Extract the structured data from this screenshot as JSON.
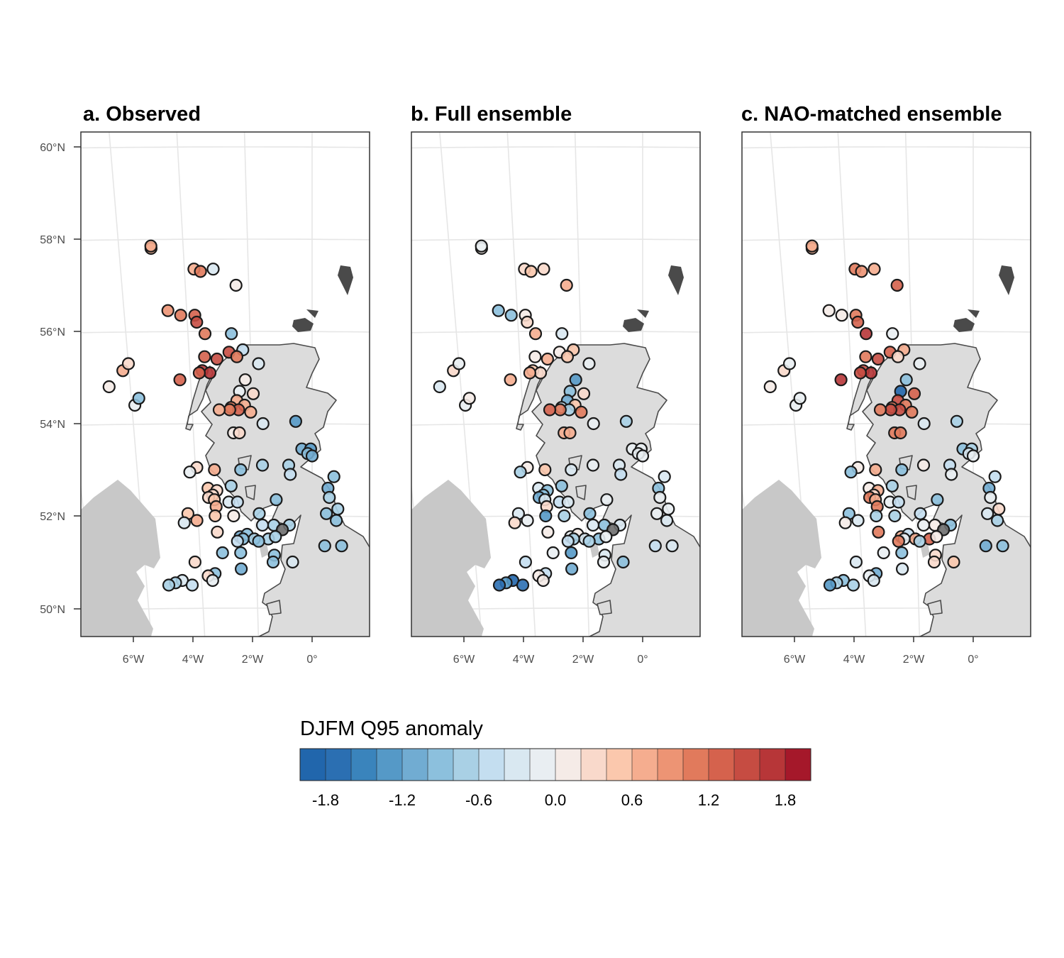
{
  "panels": [
    {
      "id": "a",
      "title": "a. Observed"
    },
    {
      "id": "b",
      "title": "b. Full ensemble"
    },
    {
      "id": "c",
      "title": "c. NAO-matched ensemble"
    }
  ],
  "axes": {
    "lat_ticks": [
      "60°N",
      "58°N",
      "56°N",
      "54°N",
      "52°N",
      "50°N"
    ],
    "lon_ticks": [
      "6°W",
      "4°W",
      "2°W",
      "0°"
    ]
  },
  "legend": {
    "title": "DJFM Q95 anomaly",
    "tick_labels": [
      "-1.8",
      "-1.2",
      "-0.6",
      "0.0",
      "0.6",
      "1.2",
      "1.8"
    ],
    "tick_values": [
      -1.8,
      -1.2,
      -0.6,
      0.0,
      0.6,
      1.2,
      1.8
    ],
    "range": [
      -2.0,
      2.0
    ],
    "step": 0.2,
    "colors": [
      "#2166ac",
      "#2b6fb2",
      "#3a84bc",
      "#5599c7",
      "#71acd2",
      "#8cc0dd",
      "#a9d0e5",
      "#c4def0",
      "#d9e8f1",
      "#e9eef2",
      "#f5ebe7",
      "#f9d9cb",
      "#fbc8ad",
      "#f5ad8f",
      "#ed9474",
      "#e17a5c",
      "#d5624d",
      "#c64c42",
      "#b73638",
      "#a5182a"
    ],
    "missing_color": "#6e6e6e"
  },
  "stations": [
    {
      "lon": -5.0,
      "lat": 57.8,
      "anom": [
        0.8,
        0.0,
        0.8
      ]
    },
    {
      "lon": -3.7,
      "lat": 57.35,
      "anom": [
        0.8,
        0.3,
        1.0
      ]
    },
    {
      "lon": -3.5,
      "lat": 57.3,
      "anom": [
        1.0,
        0.5,
        0.9
      ]
    },
    {
      "lon": -3.1,
      "lat": 57.35,
      "anom": [
        -0.4,
        0.3,
        0.6
      ]
    },
    {
      "lon": -2.4,
      "lat": 57.0,
      "anom": [
        0.0,
        0.8,
        1.2
      ]
    },
    {
      "lon": -4.2,
      "lat": 56.35,
      "anom": [
        1.0,
        -0.8,
        0.0
      ]
    },
    {
      "lon": -3.75,
      "lat": 56.35,
      "anom": [
        1.3,
        0.1,
        1.1
      ]
    },
    {
      "lon": -3.7,
      "lat": 56.2,
      "anom": [
        1.5,
        0.3,
        1.3
      ]
    },
    {
      "lon": -3.45,
      "lat": 55.95,
      "anom": [
        1.1,
        0.7,
        1.8
      ]
    },
    {
      "lon": -2.6,
      "lat": 55.95,
      "anom": [
        -0.8,
        -0.3,
        -0.2
      ]
    },
    {
      "lon": -2.25,
      "lat": 55.6,
      "anom": [
        -0.5,
        0.5,
        0.6
      ]
    },
    {
      "lon": -2.7,
      "lat": 55.55,
      "anom": [
        1.4,
        0.0,
        1.3
      ]
    },
    {
      "lon": -2.45,
      "lat": 55.45,
      "anom": [
        1.1,
        0.5,
        0.4
      ]
    },
    {
      "lon": -3.5,
      "lat": 55.45,
      "anom": [
        1.3,
        0.0,
        1.0
      ]
    },
    {
      "lon": -3.1,
      "lat": 55.4,
      "anom": [
        1.5,
        0.7,
        1.5
      ]
    },
    {
      "lon": -3.6,
      "lat": 55.15,
      "anom": [
        1.6,
        0.5,
        1.5
      ]
    },
    {
      "lon": -3.35,
      "lat": 55.1,
      "anom": [
        1.7,
        0.3,
        1.6
      ]
    },
    {
      "lon": -3.7,
      "lat": 55.1,
      "anom": [
        1.2,
        0.7,
        1.4
      ]
    },
    {
      "lon": -1.75,
      "lat": 55.3,
      "anom": [
        -0.4,
        -0.1,
        -0.1
      ]
    },
    {
      "lon": -4.35,
      "lat": 54.95,
      "anom": [
        1.2,
        0.8,
        1.7
      ]
    },
    {
      "lon": -2.2,
      "lat": 54.95,
      "anom": [
        0.1,
        -1.4,
        -0.9
      ]
    },
    {
      "lon": -2.4,
      "lat": 54.7,
      "anom": [
        -0.2,
        -1.0,
        -2.0
      ]
    },
    {
      "lon": -1.95,
      "lat": 54.65,
      "anom": [
        0.4,
        0.3,
        1.2
      ]
    },
    {
      "lon": -2.5,
      "lat": 54.5,
      "anom": [
        0.8,
        -1.1,
        1.4
      ]
    },
    {
      "lon": -2.25,
      "lat": 54.4,
      "anom": [
        0.6,
        0.5,
        1.0
      ]
    },
    {
      "lon": -2.7,
      "lat": 54.35,
      "anom": [
        1.0,
        -0.5,
        1.1
      ]
    },
    {
      "lon": -2.45,
      "lat": 54.3,
      "anom": [
        1.2,
        -0.7,
        1.4
      ]
    },
    {
      "lon": -2.75,
      "lat": 54.3,
      "anom": [
        1.1,
        1.0,
        1.5
      ]
    },
    {
      "lon": -3.1,
      "lat": 54.3,
      "anom": [
        0.7,
        1.3,
        1.0
      ]
    },
    {
      "lon": -2.05,
      "lat": 54.25,
      "anom": [
        0.8,
        1.0,
        1.0
      ]
    },
    {
      "lon": -1.65,
      "lat": 54.0,
      "anom": [
        -0.3,
        -0.2,
        -0.4
      ]
    },
    {
      "lon": -0.55,
      "lat": 54.05,
      "anom": [
        -1.3,
        -0.6,
        -0.7
      ]
    },
    {
      "lon": -2.65,
      "lat": 53.8,
      "anom": [
        0.1,
        0.7,
        1.0
      ]
    },
    {
      "lon": -2.45,
      "lat": 53.8,
      "anom": [
        0.4,
        0.8,
        1.1
      ]
    },
    {
      "lon": -0.35,
      "lat": 53.45,
      "anom": [
        -1.2,
        -0.1,
        -0.8
      ]
    },
    {
      "lon": -0.05,
      "lat": 53.45,
      "anom": [
        -1.4,
        -0.2,
        -0.6
      ]
    },
    {
      "lon": -0.15,
      "lat": 53.35,
      "anom": [
        -1.0,
        -0.2,
        -0.3
      ]
    },
    {
      "lon": 0.0,
      "lat": 53.3,
      "anom": [
        -1.2,
        -0.1,
        -0.2
      ]
    },
    {
      "lon": -3.35,
      "lat": 53.0,
      "anom": [
        0.7,
        0.5,
        0.8
      ]
    },
    {
      "lon": -3.95,
      "lat": 53.05,
      "anom": [
        0.3,
        0.0,
        0.0
      ]
    },
    {
      "lon": -4.2,
      "lat": 52.95,
      "anom": [
        -0.1,
        -0.7,
        -0.9
      ]
    },
    {
      "lon": -2.45,
      "lat": 53.0,
      "anom": [
        -0.8,
        -0.4,
        -1.0
      ]
    },
    {
      "lon": -1.7,
      "lat": 53.1,
      "anom": [
        -0.6,
        -0.2,
        0.1
      ]
    },
    {
      "lon": -0.8,
      "lat": 53.1,
      "anom": [
        -0.6,
        -0.4,
        -0.5
      ]
    },
    {
      "lon": -0.75,
      "lat": 52.9,
      "anom": [
        -0.5,
        -0.5,
        -0.2
      ]
    },
    {
      "lon": 0.75,
      "lat": 52.85,
      "anom": [
        -0.9,
        -0.3,
        -0.5
      ]
    },
    {
      "lon": -3.6,
      "lat": 52.6,
      "anom": [
        0.5,
        -0.4,
        0.1
      ]
    },
    {
      "lon": -3.3,
      "lat": 52.55,
      "anom": [
        0.4,
        -0.8,
        0.6
      ]
    },
    {
      "lon": -2.8,
      "lat": 52.65,
      "anom": [
        -0.6,
        -0.8,
        -0.7
      ]
    },
    {
      "lon": 0.55,
      "lat": 52.6,
      "anom": [
        -1.2,
        -0.8,
        -1.1
      ]
    },
    {
      "lon": -3.45,
      "lat": 52.45,
      "anom": [
        0.4,
        -1.0,
        0.4
      ]
    },
    {
      "lon": -3.6,
      "lat": 52.4,
      "anom": [
        0.2,
        -1.2,
        1.1
      ]
    },
    {
      "lon": -3.4,
      "lat": 52.35,
      "anom": [
        0.5,
        -0.3,
        0.8
      ]
    },
    {
      "lon": -3.35,
      "lat": 52.2,
      "anom": [
        0.6,
        0.3,
        1.0
      ]
    },
    {
      "lon": -2.9,
      "lat": 52.3,
      "anom": [
        -0.3,
        -0.5,
        -0.1
      ]
    },
    {
      "lon": -2.6,
      "lat": 52.3,
      "anom": [
        -0.5,
        -0.4,
        -0.5
      ]
    },
    {
      "lon": -1.25,
      "lat": 52.35,
      "anom": [
        -0.9,
        -0.2,
        -0.9
      ]
    },
    {
      "lon": 0.6,
      "lat": 52.4,
      "anom": [
        -0.6,
        -0.2,
        -0.2
      ]
    },
    {
      "lon": 0.9,
      "lat": 52.15,
      "anom": [
        -0.7,
        -0.2,
        0.4
      ]
    },
    {
      "lon": -4.35,
      "lat": 52.05,
      "anom": [
        0.5,
        -0.4,
        -0.9
      ]
    },
    {
      "lon": -3.4,
      "lat": 52.0,
      "anom": [
        0.5,
        -1.3,
        -0.6
      ]
    },
    {
      "lon": -2.75,
      "lat": 52.0,
      "anom": [
        0.1,
        -0.6,
        -0.6
      ]
    },
    {
      "lon": -1.85,
      "lat": 52.05,
      "anom": [
        -0.6,
        -0.8,
        -0.5
      ]
    },
    {
      "lon": 0.5,
      "lat": 52.05,
      "anom": [
        -1.0,
        -0.1,
        -0.3
      ]
    },
    {
      "lon": 0.85,
      "lat": 51.9,
      "anom": [
        -0.9,
        -0.3,
        -0.6
      ]
    },
    {
      "lon": -4.5,
      "lat": 51.85,
      "anom": [
        -0.3,
        0.2,
        0.0
      ]
    },
    {
      "lon": -4.05,
      "lat": 51.9,
      "anom": [
        0.6,
        -0.2,
        -0.4
      ]
    },
    {
      "lon": -0.8,
      "lat": 51.8,
      "anom": [
        -0.6,
        -0.3,
        -1.0
      ]
    },
    {
      "lon": -1.75,
      "lat": 51.8,
      "anom": [
        -0.5,
        -0.4,
        -0.2
      ]
    },
    {
      "lon": -1.35,
      "lat": 51.8,
      "anom": [
        -0.7,
        -0.8,
        0.0
      ]
    },
    {
      "lon": -1.05,
      "lat": 51.7,
      "anom": [
        null,
        null,
        null
      ]
    },
    {
      "lon": -3.35,
      "lat": 51.65,
      "anom": [
        0.4,
        0.0,
        1.1
      ]
    },
    {
      "lon": -2.55,
      "lat": 51.55,
      "anom": [
        -1.2,
        -0.2,
        0.6
      ]
    },
    {
      "lon": -2.3,
      "lat": 51.6,
      "anom": [
        -0.8,
        0.0,
        -0.5
      ]
    },
    {
      "lon": -2.05,
      "lat": 51.5,
      "anom": [
        -0.6,
        -0.3,
        0.8
      ]
    },
    {
      "lon": -2.45,
      "lat": 51.5,
      "anom": [
        -0.9,
        -0.6,
        -0.2
      ]
    },
    {
      "lon": -1.55,
      "lat": 51.5,
      "anom": [
        -0.7,
        -0.8,
        1.2
      ]
    },
    {
      "lon": -1.3,
      "lat": 51.55,
      "anom": [
        -0.6,
        -0.2,
        0.0
      ]
    },
    {
      "lon": -1.9,
      "lat": 51.45,
      "anom": [
        -0.8,
        -0.6,
        -0.6
      ]
    },
    {
      "lon": -2.65,
      "lat": 51.45,
      "anom": [
        -0.5,
        -0.5,
        1.0
      ]
    },
    {
      "lon": 0.45,
      "lat": 51.35,
      "anom": [
        -1.0,
        -0.5,
        -1.2
      ]
    },
    {
      "lon": 1.05,
      "lat": 51.35,
      "anom": [
        -0.9,
        -0.4,
        -0.8
      ]
    },
    {
      "lon": -3.2,
      "lat": 51.2,
      "anom": [
        -0.8,
        -0.1,
        -0.2
      ]
    },
    {
      "lon": -4.2,
      "lat": 51.0,
      "anom": [
        0.3,
        -0.5,
        -0.3
      ]
    },
    {
      "lon": -2.55,
      "lat": 51.2,
      "anom": [
        -1.0,
        -1.4,
        -0.9
      ]
    },
    {
      "lon": -1.35,
      "lat": 51.15,
      "anom": [
        -1.0,
        -0.4,
        0.3
      ]
    },
    {
      "lon": -1.4,
      "lat": 51.0,
      "anom": [
        -0.9,
        -0.1,
        0.4
      ]
    },
    {
      "lon": -0.7,
      "lat": 51.0,
      "anom": [
        -0.4,
        -0.8,
        0.5
      ]
    },
    {
      "lon": -2.55,
      "lat": 50.85,
      "anom": [
        -1.2,
        -1.2,
        -0.3
      ]
    },
    {
      "lon": -3.5,
      "lat": 50.75,
      "anom": [
        -1.0,
        -0.5,
        -1.2
      ]
    },
    {
      "lon": -3.75,
      "lat": 50.7,
      "anom": [
        0.2,
        0.0,
        -0.1
      ]
    },
    {
      "lon": -3.6,
      "lat": 50.6,
      "anom": [
        -0.2,
        0.1,
        -0.3
      ]
    },
    {
      "lon": -4.7,
      "lat": 50.6,
      "anom": [
        -0.3,
        -2.0,
        -0.9
      ]
    },
    {
      "lon": -4.95,
      "lat": 50.55,
      "anom": [
        -0.6,
        -1.4,
        -0.6
      ]
    },
    {
      "lon": -5.2,
      "lat": 50.5,
      "anom": [
        -0.7,
        -1.6,
        -1.3
      ]
    },
    {
      "lon": -4.35,
      "lat": 50.5,
      "anom": [
        -0.5,
        -1.7,
        -0.6
      ]
    },
    {
      "lon": -6.7,
      "lat": 54.8,
      "anom": [
        0.1,
        -0.3,
        0.1
      ]
    },
    {
      "lon": -6.2,
      "lat": 55.15,
      "anom": [
        0.7,
        0.4,
        0.2
      ]
    },
    {
      "lon": -6.0,
      "lat": 55.3,
      "anom": [
        0.3,
        -0.2,
        -0.1
      ]
    },
    {
      "lon": -5.9,
      "lat": 54.4,
      "anom": [
        -0.2,
        -0.2,
        -0.1
      ]
    },
    {
      "lon": -5.75,
      "lat": 54.55,
      "anom": [
        -0.8,
        0.0,
        -0.2
      ]
    },
    {
      "lon": -5.0,
      "lat": 57.85,
      "anom": [
        0.8,
        -0.1,
        0.8
      ]
    },
    {
      "lon": -4.6,
      "lat": 56.45,
      "anom": [
        0.9,
        -0.9,
        0.1
      ]
    }
  ]
}
